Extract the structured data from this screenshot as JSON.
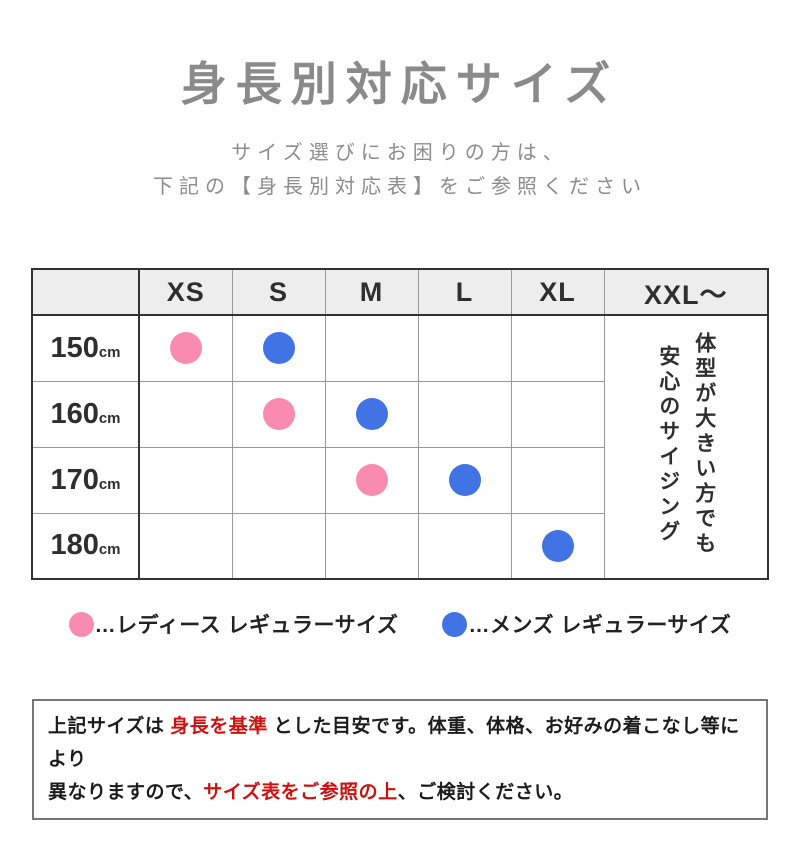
{
  "colors": {
    "title_gray": "#8a8a8a",
    "text_dark": "#2e2e2e",
    "ladies_pink": "#f98bb1",
    "mens_blue": "#4173e4",
    "accent_red": "#cc1111",
    "header_bg": "#ededed",
    "border_dark": "#333333",
    "grid_gray": "#999999"
  },
  "header": {
    "title": "身長別対応サイズ",
    "subtitle_line1": "サイズ選びにお困りの方は、",
    "subtitle_line2": "下記の【身長別対応表】をご参照ください"
  },
  "table": {
    "columns": [
      "XS",
      "S",
      "M",
      "L",
      "XL",
      "XXL〜"
    ],
    "rows": [
      {
        "height": "150",
        "unit": "cm",
        "ladies": "XS",
        "mens": "S"
      },
      {
        "height": "160",
        "unit": "cm",
        "ladies": "S",
        "mens": "M"
      },
      {
        "height": "170",
        "unit": "cm",
        "ladies": "M",
        "mens": "L"
      },
      {
        "height": "180",
        "unit": "cm",
        "ladies": "",
        "mens": "XL"
      }
    ],
    "xxl_note_line1": "体型が大きい方でも",
    "xxl_note_line2": "安心のサイジング"
  },
  "legend": {
    "ladies_label": "…レディース レギュラーサイズ",
    "mens_label": "…メンズ レギュラーサイズ"
  },
  "note": {
    "lines": [
      [
        {
          "text": "上記サイズは ",
          "red": false
        },
        {
          "text": "身長を基準",
          "red": true
        },
        {
          "text": " とした目安です。体重、体格、お好みの着こなし等により",
          "red": false
        }
      ],
      [
        {
          "text": "異なりますので、",
          "red": false
        },
        {
          "text": "サイズ表をご参照の上",
          "red": true
        },
        {
          "text": "、ご検討ください。",
          "red": false
        }
      ]
    ]
  },
  "chart_data": {
    "type": "table",
    "title": "身長別対応サイズ",
    "columns": [
      "XS",
      "S",
      "M",
      "L",
      "XL",
      "XXL〜"
    ],
    "row_labels": [
      "150cm",
      "160cm",
      "170cm",
      "180cm"
    ],
    "series": [
      {
        "name": "レディース レギュラーサイズ",
        "color": "#f98bb1",
        "points": [
          {
            "row": "150cm",
            "col": "XS"
          },
          {
            "row": "160cm",
            "col": "S"
          },
          {
            "row": "170cm",
            "col": "M"
          }
        ]
      },
      {
        "name": "メンズ レギュラーサイズ",
        "color": "#4173e4",
        "points": [
          {
            "row": "150cm",
            "col": "S"
          },
          {
            "row": "160cm",
            "col": "M"
          },
          {
            "row": "170cm",
            "col": "L"
          },
          {
            "row": "180cm",
            "col": "XL"
          }
        ]
      }
    ],
    "xxl_annotation": "体型が大きい方でも安心のサイジング",
    "legend_position": "bottom"
  }
}
